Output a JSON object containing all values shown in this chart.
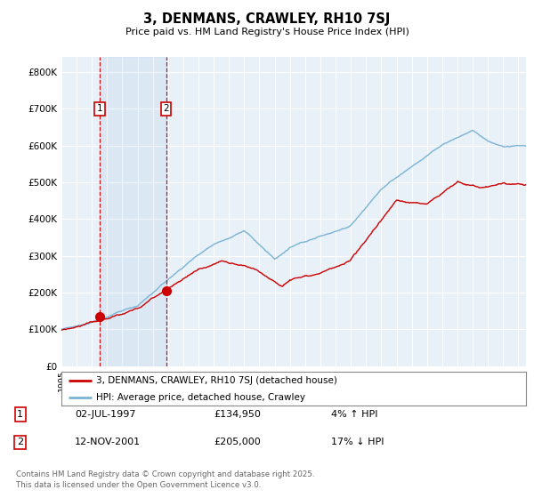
{
  "title": "3, DENMANS, CRAWLEY, RH10 7SJ",
  "subtitle": "Price paid vs. HM Land Registry's House Price Index (HPI)",
  "background_color": "#ffffff",
  "plot_bg_color": "#e8f0f8",
  "grid_color": "#ffffff",
  "sale1_date": 1997.5,
  "sale1_price": 134950,
  "sale2_date": 2001.87,
  "sale2_price": 205000,
  "legend_line1": "3, DENMANS, CRAWLEY, RH10 7SJ (detached house)",
  "legend_line2": "HPI: Average price, detached house, Crawley",
  "table_entries": [
    {
      "num": "1",
      "date": "02-JUL-1997",
      "price": "£134,950",
      "pct": "4% ↑ HPI"
    },
    {
      "num": "2",
      "date": "12-NOV-2001",
      "price": "£205,000",
      "pct": "17% ↓ HPI"
    }
  ],
  "footer": "Contains HM Land Registry data © Crown copyright and database right 2025.\nThis data is licensed under the Open Government Licence v3.0.",
  "xmin": 1995,
  "xmax": 2025.5,
  "ymin": 0,
  "ymax": 840000,
  "red_color": "#cc0000",
  "blue_color": "#7ab3d4"
}
